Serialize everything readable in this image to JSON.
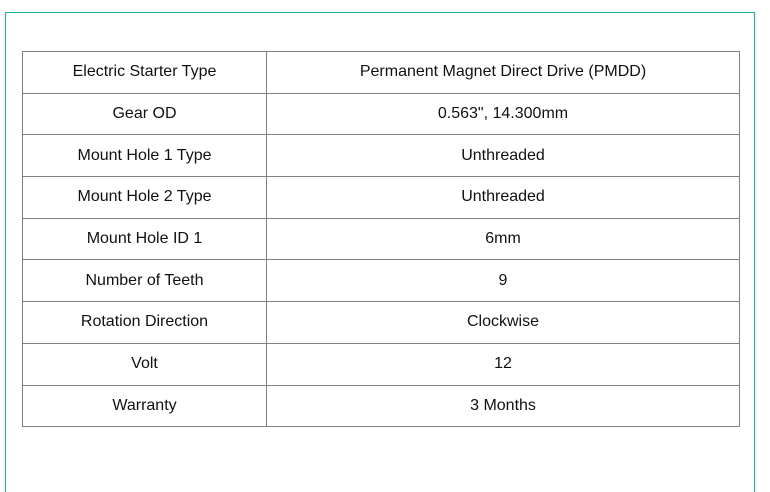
{
  "specs": [
    {
      "label": "Electric Starter Type",
      "value": "Permanent Magnet Direct Drive (PMDD)"
    },
    {
      "label": "Gear OD",
      "value": "0.563\", 14.300mm"
    },
    {
      "label": "Mount Hole 1 Type",
      "value": "Unthreaded"
    },
    {
      "label": "Mount Hole 2 Type",
      "value": "Unthreaded"
    },
    {
      "label": "Mount Hole ID 1",
      "value": "6mm"
    },
    {
      "label": "Number of Teeth",
      "value": "9"
    },
    {
      "label": "Rotation Direction",
      "value": "Clockwise"
    },
    {
      "label": "Volt",
      "value": "12"
    },
    {
      "label": "Warranty",
      "value": "3 Months"
    }
  ]
}
